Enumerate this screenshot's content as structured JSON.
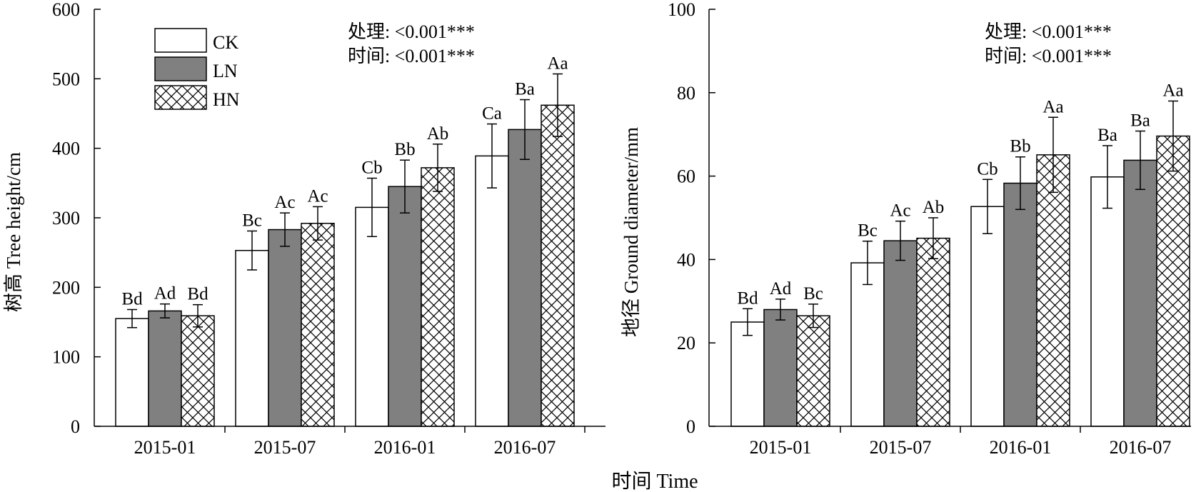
{
  "figure": {
    "x_axis_title": "时间 Time"
  },
  "legend": [
    "CK",
    "LN",
    "HN"
  ],
  "series_colors": {
    "CK": "#ffffff",
    "LN": "#808080",
    "HN": "crosshatch"
  },
  "chart_data": [
    {
      "type": "bar",
      "title": "",
      "ylabel": "树高 Tree height/cm",
      "xlabel": "",
      "ylim": [
        0,
        600
      ],
      "yticks": [
        0,
        100,
        200,
        300,
        400,
        500,
        600
      ],
      "categories": [
        "2015-01",
        "2015-07",
        "2016-01",
        "2016-07"
      ],
      "series": [
        {
          "name": "CK",
          "values": [
            155,
            253,
            315,
            389
          ],
          "errors": [
            13,
            28,
            42,
            46
          ],
          "letters": [
            "Bd",
            "Bc",
            "Cb",
            "Ca"
          ]
        },
        {
          "name": "LN",
          "values": [
            166,
            283,
            345,
            427
          ],
          "errors": [
            10,
            24,
            38,
            43
          ],
          "letters": [
            "Ad",
            "Ac",
            "Bb",
            "Ba"
          ]
        },
        {
          "name": "HN",
          "values": [
            159,
            292,
            372,
            462
          ],
          "errors": [
            16,
            24,
            34,
            45
          ],
          "letters": [
            "Bd",
            "Ac",
            "Ab",
            "Aa"
          ]
        }
      ],
      "annotations": [
        "处理: <0.001***",
        "时间: <0.001***"
      ],
      "legend_position": "top-left",
      "grid": false
    },
    {
      "type": "bar",
      "title": "",
      "ylabel": "地径 Ground diameter/mm",
      "xlabel": "",
      "ylim": [
        0,
        100
      ],
      "yticks": [
        0,
        20,
        40,
        60,
        80,
        100
      ],
      "categories": [
        "2015-01",
        "2015-07",
        "2016-01",
        "2016-07"
      ],
      "series": [
        {
          "name": "CK",
          "values": [
            25,
            39.2,
            52.7,
            59.8
          ],
          "errors": [
            3.2,
            5.2,
            6.5,
            7.5
          ],
          "letters": [
            "Bd",
            "Bc",
            "Cb",
            "Ba"
          ]
        },
        {
          "name": "LN",
          "values": [
            28,
            44.5,
            58.3,
            63.8
          ],
          "errors": [
            2.5,
            4.7,
            6.3,
            7.0
          ],
          "letters": [
            "Ad",
            "Ac",
            "Bb",
            "Ba"
          ]
        },
        {
          "name": "HN",
          "values": [
            26.5,
            45.1,
            65.1,
            69.6
          ],
          "errors": [
            2.8,
            4.9,
            9.0,
            8.4
          ],
          "letters": [
            "Bc",
            "Ab",
            "Aa",
            "Aa"
          ]
        }
      ],
      "annotations": [
        "处理: <0.001***",
        "时间: <0.001***"
      ],
      "legend_position": "none",
      "grid": false
    }
  ]
}
